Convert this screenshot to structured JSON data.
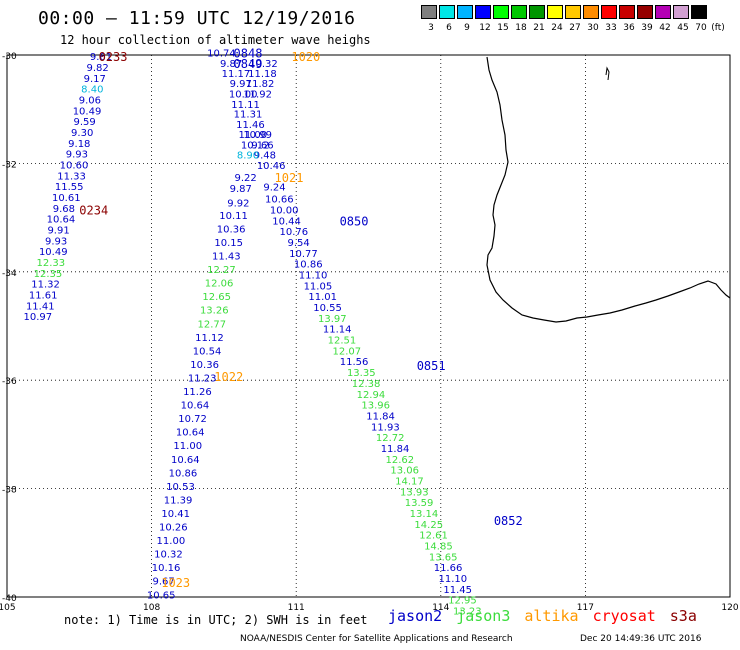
{
  "title": "00:00 – 11:59 UTC 12/19/2016",
  "subtitle": "12 hour collection of altimeter wave heighs",
  "color_scale": {
    "unit": "(ft)",
    "swatches": [
      {
        "label": "3",
        "color": "#7f7f7f"
      },
      {
        "label": "6",
        "color": "#00e6e6"
      },
      {
        "label": "9",
        "color": "#00b4ff"
      },
      {
        "label": "12",
        "color": "#0000ff"
      },
      {
        "label": "15",
        "color": "#00ff00"
      },
      {
        "label": "18",
        "color": "#00c800"
      },
      {
        "label": "21",
        "color": "#009600"
      },
      {
        "label": "24",
        "color": "#ffff00"
      },
      {
        "label": "27",
        "color": "#ffc800"
      },
      {
        "label": "30",
        "color": "#ff8c00"
      },
      {
        "label": "33",
        "color": "#ff0000"
      },
      {
        "label": "36",
        "color": "#c80000"
      },
      {
        "label": "39",
        "color": "#960000"
      },
      {
        "label": "42",
        "color": "#b400b4"
      },
      {
        "label": "45",
        "color": "#d2a0d2"
      },
      {
        "label": "70",
        "color": "#000000"
      }
    ]
  },
  "axes": {
    "lat_labels": [
      "-30",
      "-32",
      "-34",
      "-36",
      "-38",
      "-40"
    ],
    "lon_labels": [
      "105",
      "108",
      "111",
      "114",
      "117",
      "120"
    ]
  },
  "colors": {
    "jason2": "#0000c8",
    "jason3": "#3cdc3c",
    "altika": "#ff9900",
    "cryosat": "#ff0000",
    "s3a": "#8b0000",
    "light_cyan": "#00b4dc",
    "dark_red": "#8b0000"
  },
  "time_labels": [
    {
      "text": "0233",
      "lon": 107.2,
      "lat": -30.02,
      "color": "dark_red"
    },
    {
      "text": "0234",
      "lon": 106.8,
      "lat": -32.85,
      "color": "dark_red"
    },
    {
      "text": "0848",
      "lon": 110.0,
      "lat": -29.95,
      "color": "jason2"
    },
    {
      "text": "0849",
      "lon": 110.0,
      "lat": -30.15,
      "color": "jason2"
    },
    {
      "text": "1020",
      "lon": 111.2,
      "lat": -30.02,
      "color": "altika"
    },
    {
      "text": "1021",
      "lon": 110.85,
      "lat": -32.25,
      "color": "altika"
    },
    {
      "text": "0850",
      "lon": 112.2,
      "lat": -33.05,
      "color": "jason2"
    },
    {
      "text": "1022",
      "lon": 109.6,
      "lat": -35.92,
      "color": "altika"
    },
    {
      "text": "0851",
      "lon": 113.8,
      "lat": -35.72,
      "color": "jason2"
    },
    {
      "text": "0852",
      "lon": 115.4,
      "lat": -38.58,
      "color": "jason2"
    },
    {
      "text": "1023",
      "lon": 108.5,
      "lat": -39.72,
      "color": "altika"
    }
  ],
  "tracks": [
    {
      "name": "track_0233",
      "points": [
        {
          "v": "9.61",
          "lon": 106.95,
          "lat": -30.02,
          "c": "jason2"
        },
        {
          "v": "9.82",
          "lon": 106.88,
          "lat": -30.22,
          "c": "jason2"
        },
        {
          "v": "9.17",
          "lon": 106.82,
          "lat": -30.42,
          "c": "jason2"
        },
        {
          "v": "8.40",
          "lon": 106.77,
          "lat": -30.62,
          "c": "light_cyan"
        },
        {
          "v": "9.06",
          "lon": 106.72,
          "lat": -30.82,
          "c": "jason2"
        },
        {
          "v": "10.49",
          "lon": 106.66,
          "lat": -31.02,
          "c": "jason2"
        },
        {
          "v": "9.59",
          "lon": 106.61,
          "lat": -31.22,
          "c": "jason2"
        },
        {
          "v": "9.30",
          "lon": 106.56,
          "lat": -31.42,
          "c": "jason2"
        },
        {
          "v": "9.18",
          "lon": 106.5,
          "lat": -31.62,
          "c": "jason2"
        },
        {
          "v": "9.93",
          "lon": 106.45,
          "lat": -31.82,
          "c": "jason2"
        },
        {
          "v": "10.60",
          "lon": 106.39,
          "lat": -32.02,
          "c": "jason2"
        },
        {
          "v": "11.33",
          "lon": 106.34,
          "lat": -32.22,
          "c": "jason2"
        },
        {
          "v": "11.55",
          "lon": 106.29,
          "lat": -32.42,
          "c": "jason2"
        },
        {
          "v": "10.61",
          "lon": 106.23,
          "lat": -32.62,
          "c": "jason2"
        },
        {
          "v": "9.68",
          "lon": 106.18,
          "lat": -32.82,
          "c": "jason2"
        },
        {
          "v": "10.64",
          "lon": 106.12,
          "lat": -33.02,
          "c": "jason2"
        },
        {
          "v": "9.91",
          "lon": 106.07,
          "lat": -33.22,
          "c": "jason2"
        },
        {
          "v": "9.93",
          "lon": 106.02,
          "lat": -33.42,
          "c": "jason2"
        },
        {
          "v": "10.49",
          "lon": 105.96,
          "lat": -33.62,
          "c": "jason2"
        },
        {
          "v": "12.33",
          "lon": 105.91,
          "lat": -33.82,
          "c": "jason3"
        },
        {
          "v": "12.35",
          "lon": 105.85,
          "lat": -34.02,
          "c": "jason3"
        },
        {
          "v": "11.32",
          "lon": 105.8,
          "lat": -34.22,
          "c": "jason2"
        },
        {
          "v": "11.61",
          "lon": 105.75,
          "lat": -34.42,
          "c": "jason2"
        },
        {
          "v": "11.41",
          "lon": 105.69,
          "lat": -34.62,
          "c": "jason2"
        },
        {
          "v": "10.97",
          "lon": 105.64,
          "lat": -34.82,
          "c": "jason2"
        }
      ]
    },
    {
      "name": "track_0848",
      "points": [
        {
          "v": "10.74",
          "lon": 109.45,
          "lat": -29.95,
          "c": "jason2"
        },
        {
          "v": "9.87",
          "lon": 109.65,
          "lat": -30.15,
          "c": "jason2"
        },
        {
          "v": "11.17",
          "lon": 109.75,
          "lat": -30.33,
          "c": "jason2"
        },
        {
          "v": "9.97",
          "lon": 109.85,
          "lat": -30.52,
          "c": "jason2"
        },
        {
          "v": "10.00",
          "lon": 109.9,
          "lat": -30.71,
          "c": "jason2"
        },
        {
          "v": "11.11",
          "lon": 109.95,
          "lat": -30.9,
          "c": "jason2"
        },
        {
          "v": "11.31",
          "lon": 110.0,
          "lat": -31.08,
          "c": "jason2"
        },
        {
          "v": "11.46",
          "lon": 110.05,
          "lat": -31.27,
          "c": "jason2"
        },
        {
          "v": "11.00",
          "lon": 110.1,
          "lat": -31.46,
          "c": "jason2"
        },
        {
          "v": "10.12",
          "lon": 110.15,
          "lat": -31.65,
          "c": "jason2"
        },
        {
          "v": "9.48",
          "lon": 110.35,
          "lat": -31.84,
          "c": "jason2"
        },
        {
          "v": "10.46",
          "lon": 110.48,
          "lat": -32.03,
          "c": "jason2"
        },
        {
          "v": "9.24",
          "lon": 110.55,
          "lat": -32.43,
          "c": "jason2"
        },
        {
          "v": "10.66",
          "lon": 110.65,
          "lat": -32.65,
          "c": "jason2"
        },
        {
          "v": "10.00",
          "lon": 110.75,
          "lat": -32.85,
          "c": "jason2"
        },
        {
          "v": "10.44",
          "lon": 110.8,
          "lat": -33.05,
          "c": "jason2"
        },
        {
          "v": "10.76",
          "lon": 110.95,
          "lat": -33.25,
          "c": "jason2"
        },
        {
          "v": "9.54",
          "lon": 111.05,
          "lat": -33.45,
          "c": "jason2"
        },
        {
          "v": "10.77",
          "lon": 111.15,
          "lat": -33.65,
          "c": "jason2"
        },
        {
          "v": "10.86",
          "lon": 111.25,
          "lat": -33.85,
          "c": "jason2"
        },
        {
          "v": "11.10",
          "lon": 111.35,
          "lat": -34.05,
          "c": "jason2"
        },
        {
          "v": "11.05",
          "lon": 111.45,
          "lat": -34.25,
          "c": "jason2"
        },
        {
          "v": "11.01",
          "lon": 111.55,
          "lat": -34.45,
          "c": "jason2"
        },
        {
          "v": "10.55",
          "lon": 111.65,
          "lat": -34.65,
          "c": "jason2"
        },
        {
          "v": "13.97",
          "lon": 111.75,
          "lat": -34.85,
          "c": "jason3"
        },
        {
          "v": "11.14",
          "lon": 111.85,
          "lat": -35.05,
          "c": "jason2"
        },
        {
          "v": "12.51",
          "lon": 111.95,
          "lat": -35.25,
          "c": "jason3"
        },
        {
          "v": "12.07",
          "lon": 112.05,
          "lat": -35.45,
          "c": "jason3"
        },
        {
          "v": "11.56",
          "lon": 112.2,
          "lat": -35.65,
          "c": "jason2"
        },
        {
          "v": "13.35",
          "lon": 112.35,
          "lat": -35.85,
          "c": "jason3"
        },
        {
          "v": "12.38",
          "lon": 112.45,
          "lat": -36.05,
          "c": "jason3"
        },
        {
          "v": "12.94",
          "lon": 112.55,
          "lat": -36.25,
          "c": "jason3"
        },
        {
          "v": "13.96",
          "lon": 112.65,
          "lat": -36.45,
          "c": "jason3"
        },
        {
          "v": "11.84",
          "lon": 112.75,
          "lat": -36.65,
          "c": "jason2"
        },
        {
          "v": "11.93",
          "lon": 112.85,
          "lat": -36.85,
          "c": "jason2"
        },
        {
          "v": "12.72",
          "lon": 112.95,
          "lat": -37.05,
          "c": "jason3"
        },
        {
          "v": "11.84",
          "lon": 113.05,
          "lat": -37.25,
          "c": "jason2"
        },
        {
          "v": "12.62",
          "lon": 113.15,
          "lat": -37.45,
          "c": "jason3"
        },
        {
          "v": "13.06",
          "lon": 113.25,
          "lat": -37.65,
          "c": "jason3"
        },
        {
          "v": "14.17",
          "lon": 113.35,
          "lat": -37.85,
          "c": "jason3"
        },
        {
          "v": "13.93",
          "lon": 113.45,
          "lat": -38.05,
          "c": "jason3"
        },
        {
          "v": "13.59",
          "lon": 113.55,
          "lat": -38.25,
          "c": "jason3"
        },
        {
          "v": "13.14",
          "lon": 113.65,
          "lat": -38.45,
          "c": "jason3"
        },
        {
          "v": "14.25",
          "lon": 113.75,
          "lat": -38.65,
          "c": "jason3"
        },
        {
          "v": "12.61",
          "lon": 113.85,
          "lat": -38.85,
          "c": "jason3"
        },
        {
          "v": "14.85",
          "lon": 113.95,
          "lat": -39.05,
          "c": "jason3"
        },
        {
          "v": "13.65",
          "lon": 114.05,
          "lat": -39.25,
          "c": "jason3"
        },
        {
          "v": "11.66",
          "lon": 114.15,
          "lat": -39.45,
          "c": "jason2"
        },
        {
          "v": "11.10",
          "lon": 114.25,
          "lat": -39.65,
          "c": "jason2"
        },
        {
          "v": "11.45",
          "lon": 114.35,
          "lat": -39.85,
          "c": "jason2"
        },
        {
          "v": "12.95",
          "lon": 114.45,
          "lat": -40.05,
          "c": "jason3"
        },
        {
          "v": "13.23",
          "lon": 114.55,
          "lat": -40.25,
          "c": "jason3"
        }
      ]
    },
    {
      "name": "track_1020",
      "points": [
        {
          "v": "11.82",
          "lon": 110.25,
          "lat": -30.52,
          "c": "jason2"
        },
        {
          "v": "11.92",
          "lon": 110.2,
          "lat": -30.71,
          "c": "jason2"
        },
        {
          "v": "11.18",
          "lon": 110.3,
          "lat": -30.33,
          "c": "jason2"
        },
        {
          "v": "10.32",
          "lon": 110.32,
          "lat": -30.15,
          "c": "jason2"
        },
        {
          "v": "10.99",
          "lon": 110.2,
          "lat": -31.46,
          "c": "jason2"
        },
        {
          "v": "9.66",
          "lon": 110.3,
          "lat": -31.65,
          "c": "jason2"
        },
        {
          "v": "8.90",
          "lon": 110.0,
          "lat": -31.84,
          "c": "light_cyan"
        },
        {
          "v": "9.22",
          "lon": 109.95,
          "lat": -32.25,
          "c": "jason2"
        },
        {
          "v": "9.87",
          "lon": 109.85,
          "lat": -32.45,
          "c": "jason2"
        },
        {
          "v": "9.92",
          "lon": 109.8,
          "lat": -32.72,
          "c": "jason2"
        },
        {
          "v": "10.11",
          "lon": 109.7,
          "lat": -32.95,
          "c": "jason2"
        },
        {
          "v": "10.36",
          "lon": 109.65,
          "lat": -33.2,
          "c": "jason2"
        },
        {
          "v": "10.15",
          "lon": 109.6,
          "lat": -33.45,
          "c": "jason2"
        },
        {
          "v": "11.43",
          "lon": 109.55,
          "lat": -33.7,
          "c": "jason2"
        },
        {
          "v": "12.27",
          "lon": 109.45,
          "lat": -33.95,
          "c": "jason3"
        },
        {
          "v": "12.06",
          "lon": 109.4,
          "lat": -34.2,
          "c": "jason3"
        },
        {
          "v": "12.65",
          "lon": 109.35,
          "lat": -34.45,
          "c": "jason3"
        },
        {
          "v": "13.26",
          "lon": 109.3,
          "lat": -34.7,
          "c": "jason3"
        },
        {
          "v": "12.77",
          "lon": 109.25,
          "lat": -34.95,
          "c": "jason3"
        },
        {
          "v": "11.12",
          "lon": 109.2,
          "lat": -35.2,
          "c": "jason2"
        },
        {
          "v": "10.54",
          "lon": 109.15,
          "lat": -35.45,
          "c": "jason2"
        },
        {
          "v": "10.36",
          "lon": 109.1,
          "lat": -35.7,
          "c": "jason2"
        },
        {
          "v": "11.23",
          "lon": 109.05,
          "lat": -35.95,
          "c": "jason2"
        },
        {
          "v": "11.26",
          "lon": 108.95,
          "lat": -36.2,
          "c": "jason2"
        },
        {
          "v": "10.64",
          "lon": 108.9,
          "lat": -36.45,
          "c": "jason2"
        },
        {
          "v": "10.72",
          "lon": 108.85,
          "lat": -36.7,
          "c": "jason2"
        },
        {
          "v": "10.64",
          "lon": 108.8,
          "lat": -36.95,
          "c": "jason2"
        },
        {
          "v": "11.00",
          "lon": 108.75,
          "lat": -37.2,
          "c": "jason2"
        },
        {
          "v": "10.64",
          "lon": 108.7,
          "lat": -37.45,
          "c": "jason2"
        },
        {
          "v": "10.86",
          "lon": 108.65,
          "lat": -37.7,
          "c": "jason2"
        },
        {
          "v": "10.53",
          "lon": 108.6,
          "lat": -37.95,
          "c": "jason2"
        },
        {
          "v": "11.39",
          "lon": 108.55,
          "lat": -38.2,
          "c": "jason2"
        },
        {
          "v": "10.41",
          "lon": 108.5,
          "lat": -38.45,
          "c": "jason2"
        },
        {
          "v": "10.26",
          "lon": 108.45,
          "lat": -38.7,
          "c": "jason2"
        },
        {
          "v": "11.00",
          "lon": 108.4,
          "lat": -38.95,
          "c": "jason2"
        },
        {
          "v": "10.32",
          "lon": 108.35,
          "lat": -39.2,
          "c": "jason2"
        },
        {
          "v": "10.16",
          "lon": 108.3,
          "lat": -39.45,
          "c": "jason2"
        },
        {
          "v": "9.67",
          "lon": 108.25,
          "lat": -39.7,
          "c": "jason2"
        },
        {
          "v": "10.65",
          "lon": 108.2,
          "lat": -39.95,
          "c": "jason2"
        }
      ]
    }
  ],
  "note": "note: 1) Time is in UTC; 2) SWH is in feet",
  "satellites": [
    {
      "label": "jason2",
      "color": "jason2"
    },
    {
      "label": "jason3",
      "color": "jason3"
    },
    {
      "label": "altika",
      "color": "altika"
    },
    {
      "label": "cryosat",
      "color": "cryosat"
    },
    {
      "label": "s3a",
      "color": "s3a"
    }
  ],
  "footer_left": "NOAA/NESDIS Center for Satellite Applications and Research",
  "footer_right": "Dec 20 14:49:36 UTC 2016"
}
